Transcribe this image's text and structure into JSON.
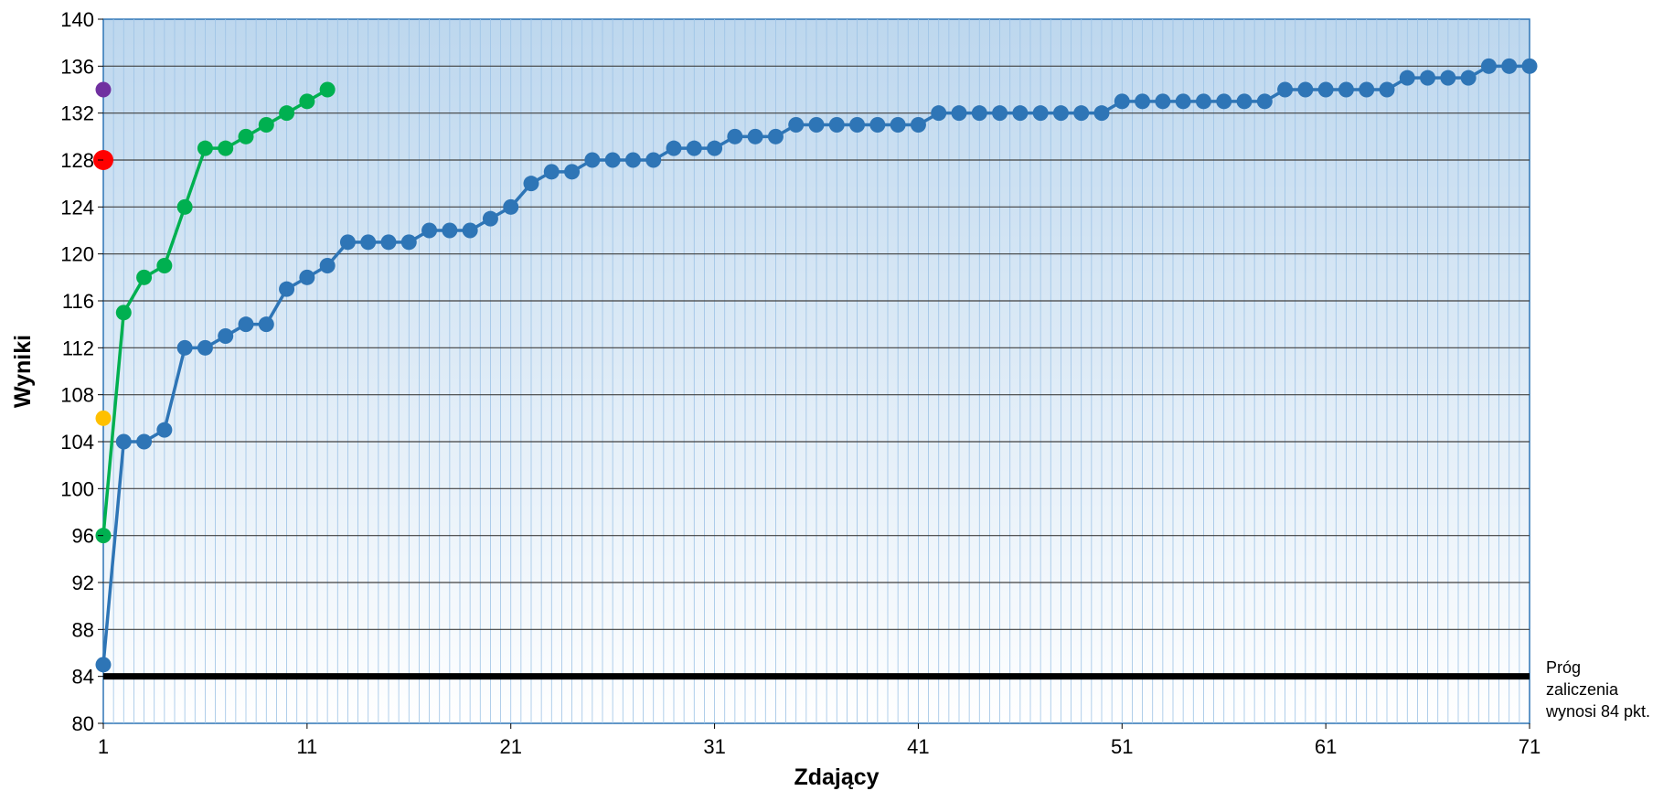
{
  "chart_data": {
    "type": "line",
    "title": "",
    "xlabel": "Zdający",
    "ylabel": "Wyniki",
    "xlim": [
      1,
      71
    ],
    "ylim": [
      80,
      140
    ],
    "x_ticks": [
      1,
      11,
      21,
      31,
      41,
      51,
      61,
      71
    ],
    "y_ticks": [
      80,
      84,
      88,
      92,
      96,
      100,
      104,
      108,
      112,
      116,
      120,
      124,
      128,
      132,
      136,
      140
    ],
    "grid": true,
    "series": [
      {
        "color": "#2E75B6",
        "x": [
          1,
          2,
          3,
          4,
          5,
          6,
          7,
          8,
          9,
          10,
          11,
          12,
          13,
          14,
          15,
          16,
          17,
          18,
          19,
          20,
          21,
          22,
          23,
          24,
          25,
          26,
          27,
          28,
          29,
          30,
          31,
          32,
          33,
          34,
          35,
          36,
          37,
          38,
          39,
          40,
          41,
          42,
          43,
          44,
          45,
          46,
          47,
          48,
          49,
          50,
          51,
          52,
          53,
          54,
          55,
          56,
          57,
          58,
          59,
          60,
          61,
          62,
          63,
          64,
          65,
          66,
          67,
          68,
          69,
          70,
          71
        ],
        "values": [
          85,
          104,
          104,
          105,
          112,
          112,
          113,
          114,
          114,
          117,
          118,
          119,
          121,
          121,
          121,
          121,
          122,
          122,
          122,
          123,
          124,
          126,
          127,
          127,
          128,
          128,
          128,
          128,
          129,
          129,
          129,
          130,
          130,
          130,
          131,
          131,
          131,
          131,
          131,
          131,
          131,
          132,
          132,
          132,
          132,
          132,
          132,
          132,
          132,
          132,
          133,
          133,
          133,
          133,
          133,
          133,
          133,
          133,
          134,
          134,
          134,
          134,
          134,
          134,
          135,
          135,
          135,
          135,
          136,
          136,
          136
        ]
      },
      {
        "color": "#00B050",
        "x": [
          1,
          2,
          3,
          4,
          5,
          6,
          7,
          8,
          9,
          10,
          11,
          12
        ],
        "values": [
          96,
          115,
          118,
          119,
          124,
          129,
          129,
          130,
          131,
          132,
          133,
          134
        ]
      },
      {
        "color": "#7030A0",
        "x": [
          1
        ],
        "values": [
          134
        ]
      },
      {
        "color": "#FF0000",
        "x": [
          1
        ],
        "values": [
          128
        ]
      },
      {
        "color": "#FFC000",
        "x": [
          1
        ],
        "values": [
          106
        ]
      }
    ],
    "threshold": {
      "value": 84,
      "color": "#000000",
      "label_lines": [
        "Próg",
        "zaliczenia",
        "wynosi 84 pkt."
      ]
    },
    "background_gradient": [
      "#BDD7EE",
      "#FFFFFF"
    ],
    "grid_color": "#404040",
    "minor_grid_color": "#9DC3E6"
  }
}
